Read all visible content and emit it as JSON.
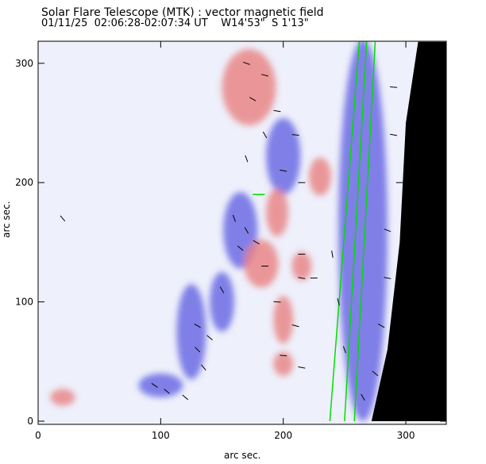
{
  "header": {
    "title": "Solar Flare Telescope (MTK) : vector magnetic field",
    "subtitle": "01/11/25  02:06:28-02:07:34 UT    W14'53\"  S 1'13\""
  },
  "chart_data": {
    "type": "heatmap",
    "title": "Solar Flare Telescope (MTK) : vector magnetic field",
    "xlabel": "arc sec.",
    "ylabel": "arc sec.",
    "xlim": [
      0,
      333
    ],
    "ylim": [
      0,
      318
    ],
    "xticks": [
      0,
      100,
      200,
      300
    ],
    "yticks": [
      0,
      100,
      200,
      300
    ],
    "grid": false,
    "colors": {
      "positive": "#e88080",
      "negative": "#5a5ae0",
      "background": "#eef0fb",
      "limb": "#000000",
      "contour": "#00dd00",
      "arrow": "#000000"
    },
    "blue_regions": [
      [
        165,
        160,
        14,
        32
      ],
      [
        200,
        222,
        14,
        32
      ],
      [
        125,
        75,
        12,
        40
      ],
      [
        100,
        30,
        18,
        10
      ],
      [
        150,
        100,
        10,
        25
      ],
      [
        265,
        160,
        20,
        160
      ]
    ],
    "red_regions": [
      [
        172,
        280,
        22,
        32
      ],
      [
        182,
        132,
        14,
        20
      ],
      [
        195,
        175,
        9,
        20
      ],
      [
        200,
        85,
        8,
        20
      ],
      [
        200,
        48,
        8,
        10
      ],
      [
        20,
        20,
        10,
        7
      ],
      [
        230,
        205,
        9,
        16
      ],
      [
        215,
        130,
        8,
        12
      ]
    ],
    "limb_edge": [
      [
        310,
        318
      ],
      [
        300,
        250
      ],
      [
        295,
        150
      ],
      [
        285,
        60
      ],
      [
        272,
        0
      ]
    ],
    "contours": [
      [
        [
          238,
          0
        ],
        [
          262,
          318
        ]
      ],
      [
        [
          250,
          0
        ],
        [
          268,
          318
        ]
      ],
      [
        [
          258,
          0
        ],
        [
          275,
          318
        ]
      ],
      [
        [
          175,
          190
        ],
        [
          185,
          190
        ]
      ]
    ],
    "arrows": [
      [
        170,
        300,
        -20
      ],
      [
        185,
        290,
        -15
      ],
      [
        175,
        270,
        -30
      ],
      [
        195,
        260,
        -10
      ],
      [
        210,
        240,
        -5
      ],
      [
        185,
        240,
        -60
      ],
      [
        170,
        220,
        -70
      ],
      [
        200,
        210,
        -10
      ],
      [
        215,
        200,
        0
      ],
      [
        160,
        170,
        -70
      ],
      [
        170,
        160,
        -60
      ],
      [
        165,
        145,
        -40
      ],
      [
        178,
        150,
        -30
      ],
      [
        185,
        130,
        0
      ],
      [
        215,
        140,
        0
      ],
      [
        215,
        120,
        -10
      ],
      [
        195,
        100,
        -5
      ],
      [
        210,
        80,
        -15
      ],
      [
        200,
        55,
        -5
      ],
      [
        215,
        45,
        -10
      ],
      [
        130,
        80,
        -30
      ],
      [
        140,
        70,
        -40
      ],
      [
        130,
        60,
        -45
      ],
      [
        135,
        45,
        -50
      ],
      [
        105,
        25,
        -40
      ],
      [
        120,
        20,
        -40
      ],
      [
        95,
        30,
        -35
      ],
      [
        150,
        110,
        -60
      ],
      [
        20,
        170,
        -50
      ],
      [
        225,
        120,
        0
      ],
      [
        290,
        280,
        -5
      ],
      [
        290,
        240,
        -10
      ],
      [
        295,
        200,
        0
      ],
      [
        285,
        160,
        -20
      ],
      [
        285,
        120,
        -10
      ],
      [
        280,
        80,
        -30
      ],
      [
        275,
        40,
        -40
      ],
      [
        265,
        20,
        -60
      ],
      [
        250,
        60,
        -70
      ],
      [
        245,
        100,
        -75
      ],
      [
        240,
        140,
        -80
      ]
    ]
  }
}
